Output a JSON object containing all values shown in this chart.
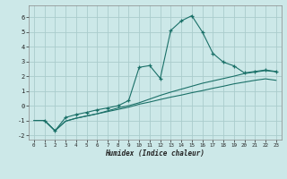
{
  "xlabel": "Humidex (Indice chaleur)",
  "bg_color": "#cce8e8",
  "grid_color": "#aacccc",
  "line_color": "#1a7068",
  "xlim": [
    -0.5,
    23.5
  ],
  "ylim": [
    -2.3,
    6.8
  ],
  "xticks": [
    0,
    1,
    2,
    3,
    4,
    5,
    6,
    7,
    8,
    9,
    10,
    11,
    12,
    13,
    14,
    15,
    16,
    17,
    18,
    19,
    20,
    21,
    22,
    23
  ],
  "yticks": [
    -2,
    -1,
    0,
    1,
    2,
    3,
    4,
    5,
    6
  ],
  "series": [
    {
      "x": [
        0,
        1,
        2,
        3,
        4,
        5,
        6,
        7,
        8,
        9,
        10,
        11,
        12,
        13,
        14,
        15,
        16,
        17,
        18,
        19,
        20,
        21,
        22,
        23
      ],
      "y": [
        -1.0,
        -1.0,
        -1.7,
        -1.05,
        -0.85,
        -0.7,
        -0.55,
        -0.4,
        -0.25,
        -0.1,
        0.1,
        0.25,
        0.42,
        0.58,
        0.72,
        0.88,
        1.02,
        1.18,
        1.32,
        1.48,
        1.6,
        1.72,
        1.82,
        1.72
      ],
      "has_markers": false
    },
    {
      "x": [
        0,
        1,
        2,
        3,
        4,
        5,
        6,
        7,
        8,
        9,
        10,
        11,
        12,
        13,
        14,
        15,
        16,
        17,
        18,
        19,
        20,
        21,
        22,
        23
      ],
      "y": [
        -1.0,
        -1.0,
        -1.7,
        -1.05,
        -0.85,
        -0.7,
        -0.55,
        -0.35,
        -0.15,
        0.0,
        0.2,
        0.45,
        0.7,
        0.92,
        1.12,
        1.32,
        1.52,
        1.68,
        1.84,
        2.0,
        2.18,
        2.28,
        2.38,
        2.3
      ],
      "has_markers": false
    },
    {
      "x": [
        1,
        2,
        3,
        4,
        5,
        6,
        7,
        8,
        9,
        10,
        11,
        12,
        13,
        14,
        15,
        16,
        17,
        18,
        19,
        20,
        21,
        22,
        23
      ],
      "y": [
        -1.0,
        -1.7,
        -0.8,
        -0.6,
        -0.45,
        -0.28,
        -0.15,
        0.0,
        0.35,
        2.6,
        2.72,
        1.85,
        5.1,
        5.75,
        6.1,
        5.0,
        3.55,
        2.95,
        2.7,
        2.22,
        2.32,
        2.42,
        2.32
      ],
      "has_markers": true
    }
  ]
}
